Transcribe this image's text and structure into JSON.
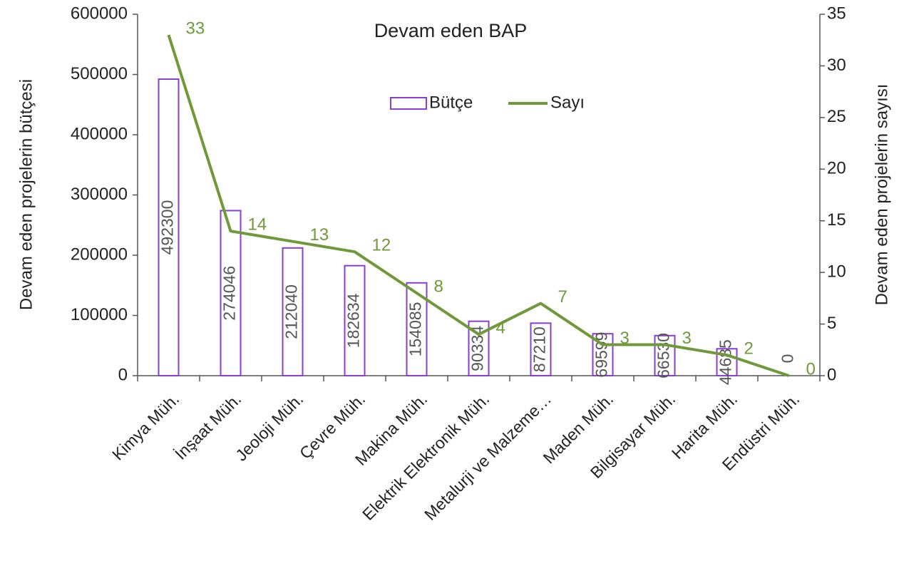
{
  "chart_data": {
    "type": "bar",
    "title": "Devam eden BAP",
    "categories": [
      "Kimya Müh.",
      "İnşaat Müh.",
      "Jeoloji Müh.",
      "Çevre Müh.",
      "Makina Müh.",
      "Elektrik Elektronik Müh.",
      "Metalurji ve Malzeme…",
      "Maden Müh.",
      "Bilgisayar Müh.",
      "Harita Müh.",
      "Endüstri Müh."
    ],
    "series": [
      {
        "name": "Bütçe",
        "type": "bar",
        "color": "#8a3fd1",
        "values": [
          492300,
          274046,
          212040,
          182634,
          154085,
          90334,
          87210,
          69599,
          66530,
          44685,
          0
        ]
      },
      {
        "name": "Sayı",
        "type": "line",
        "axis": "y2",
        "color": "#70993a",
        "values": [
          33,
          14,
          13,
          12,
          8,
          4,
          7,
          3,
          3,
          2,
          0
        ]
      }
    ],
    "ylabel": "Devam eden projelerin bütçesi",
    "y2label": "Devam eden projelerin sayısı",
    "ylim": [
      0,
      600000
    ],
    "yticks": [
      0,
      100000,
      200000,
      300000,
      400000,
      500000,
      600000
    ],
    "y2lim": [
      0,
      35
    ],
    "y2ticks": [
      0,
      5,
      10,
      15,
      20,
      25,
      30,
      35
    ],
    "grid": false,
    "legend": "top"
  }
}
